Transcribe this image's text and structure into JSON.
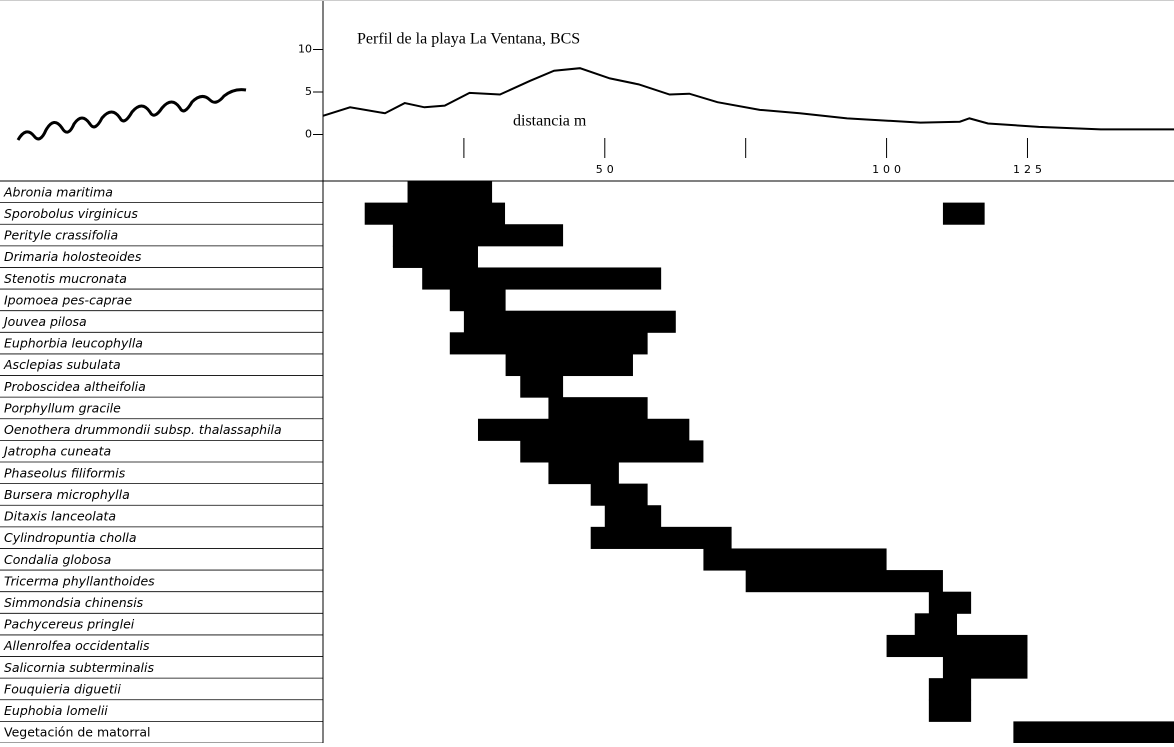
{
  "chart_data": [
    {
      "type": "line",
      "title": "Perfil de la playa La Ventana, BCS",
      "xlabel": "distancia m",
      "x": [
        0,
        4.8,
        11,
        14.5,
        18,
        21.6,
        26,
        31.4,
        36.7,
        41,
        45.6,
        50.9,
        56,
        61.5,
        65,
        70,
        77.5,
        84.6,
        93,
        106,
        113,
        114.7,
        118,
        127,
        138,
        151
      ],
      "values": [
        2.2,
        3.2,
        2.5,
        3.7,
        3.2,
        3.4,
        4.9,
        4.7,
        6.3,
        7.5,
        7.8,
        6.6,
        5.9,
        4.7,
        4.8,
        3.8,
        2.9,
        2.5,
        1.9,
        1.4,
        1.5,
        1.9,
        1.3,
        0.9,
        0.6,
        0.6
      ],
      "color": "#000000",
      "xlim": [
        0,
        151
      ],
      "xticks": [
        50,
        100,
        125
      ],
      "xminorticks": [
        25,
        75
      ],
      "ylim": [
        -1,
        13
      ],
      "yticks": [
        0,
        5,
        10
      ]
    },
    {
      "type": "range",
      "xlim": [
        0,
        151
      ],
      "color": "#000000",
      "species": [
        {
          "name": "Abronia maritima",
          "italic": true,
          "ranges": [
            [
              15,
              30
            ]
          ]
        },
        {
          "name": "Sporobolus virginicus",
          "italic": true,
          "ranges": [
            [
              7.4,
              32.3
            ],
            [
              110,
              117.4
            ]
          ]
        },
        {
          "name": "Perityle crassifolia",
          "italic": true,
          "ranges": [
            [
              12.4,
              42.6
            ]
          ]
        },
        {
          "name": "Drimaria holosteoides",
          "italic": true,
          "ranges": [
            [
              12.4,
              27.5
            ]
          ]
        },
        {
          "name": "Stenotis mucronata",
          "italic": true,
          "ranges": [
            [
              17.6,
              60
            ]
          ]
        },
        {
          "name": "Ipomoea pes-caprae",
          "italic": true,
          "ranges": [
            [
              22.5,
              32.4
            ]
          ]
        },
        {
          "name": "Jouvea pilosa",
          "italic": true,
          "ranges": [
            [
              25,
              62.6
            ]
          ]
        },
        {
          "name": "Euphorbia leucophylla",
          "italic": true,
          "ranges": [
            [
              22.5,
              57.6
            ]
          ]
        },
        {
          "name": "Asclepias subulata",
          "italic": true,
          "ranges": [
            [
              32.4,
              55
            ]
          ]
        },
        {
          "name": "Proboscidea altheifolia",
          "italic": true,
          "ranges": [
            [
              35,
              42.6
            ]
          ]
        },
        {
          "name": "Porphyllum gracile",
          "italic": true,
          "ranges": [
            [
              40,
              57.6
            ]
          ]
        },
        {
          "name": "Oenothera drummondii subsp. thalassaphila",
          "italic": true,
          "ranges": [
            [
              27.5,
              65
            ]
          ]
        },
        {
          "name": "Jatropha cuneata",
          "italic": true,
          "ranges": [
            [
              35,
              67.5
            ]
          ]
        },
        {
          "name": "Phaseolus filiformis",
          "italic": true,
          "ranges": [
            [
              40,
              52.5
            ]
          ]
        },
        {
          "name": "Bursera microphylla",
          "italic": true,
          "ranges": [
            [
              47.5,
              57.6
            ]
          ]
        },
        {
          "name": "Ditaxis lanceolata",
          "italic": true,
          "ranges": [
            [
              50,
              60
            ]
          ]
        },
        {
          "name": "Cylindropuntia cholla",
          "italic": true,
          "ranges": [
            [
              47.5,
              72.5
            ]
          ]
        },
        {
          "name": "Condalia globosa",
          "italic": true,
          "ranges": [
            [
              67.5,
              100
            ]
          ]
        },
        {
          "name": "Tricerma phyllanthoides",
          "italic": true,
          "ranges": [
            [
              75,
              110
            ]
          ]
        },
        {
          "name": "Simmondsia chinensis",
          "italic": true,
          "ranges": [
            [
              107.5,
              115
            ]
          ]
        },
        {
          "name": "Pachycereus pringlei",
          "italic": true,
          "ranges": [
            [
              105,
              112.5
            ]
          ]
        },
        {
          "name": "Allenrolfea occidentalis",
          "italic": true,
          "ranges": [
            [
              100,
              125
            ]
          ]
        },
        {
          "name": "Salicornia subterminalis",
          "italic": true,
          "ranges": [
            [
              110,
              125
            ]
          ]
        },
        {
          "name": "Fouquieria diguetii",
          "italic": true,
          "ranges": [
            [
              107.5,
              115
            ]
          ]
        },
        {
          "name": "Euphobia lomelii",
          "italic": true,
          "ranges": [
            [
              107.5,
              115
            ]
          ]
        },
        {
          "name": "Vegetación de matorral",
          "italic": false,
          "ranges": [
            [
              122.5,
              151
            ]
          ]
        }
      ]
    }
  ]
}
